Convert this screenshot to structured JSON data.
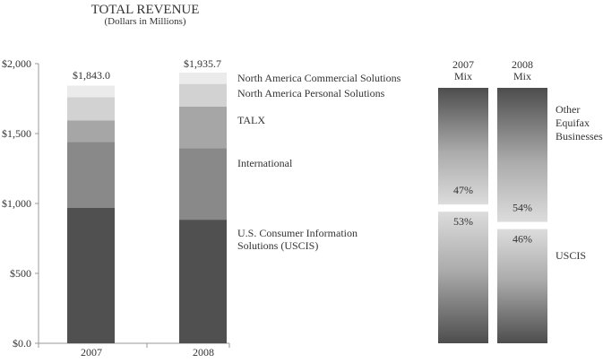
{
  "colors": {
    "text": "#333333",
    "axis": "#999999",
    "segments": [
      "#505050",
      "#898989",
      "#a6a6a6",
      "#d2d2d2",
      "#ebebeb"
    ]
  },
  "chart_data": [
    {
      "type": "bar",
      "stacked": true,
      "title": "TOTAL REVENUE",
      "subtitle": "(Dollars in Millions)",
      "categories": [
        "2007",
        "2008"
      ],
      "ylim": [
        0,
        2000
      ],
      "yticks": [
        "$0.0",
        "$500",
        "$1,000",
        "$1,500",
        "$2,000"
      ],
      "ytick_values": [
        0,
        500,
        1000,
        1500,
        2000
      ],
      "grid": false,
      "legend": "right, labels beside the 2008 bar",
      "totals": [
        "$1,843.0",
        "$1,935.7"
      ],
      "series": [
        {
          "name": "U.S. Consumer Information Solutions (USCIS)",
          "values": [
            968,
            884
          ]
        },
        {
          "name": "International",
          "values": [
            473,
            510
          ]
        },
        {
          "name": "TALX",
          "values": [
            152,
            299
          ]
        },
        {
          "name": "North America Personal Solutions",
          "values": [
            167,
            162
          ]
        },
        {
          "name": "North America Commercial Solutions",
          "values": [
            83,
            81
          ]
        }
      ]
    },
    {
      "type": "bar",
      "stacked": true,
      "title": "",
      "columns": [
        {
          "label_line1": "2007",
          "label_line2": "Mix"
        },
        {
          "label_line1": "2008",
          "label_line2": "Mix"
        }
      ],
      "categories": [
        "2007 Mix",
        "2008 Mix"
      ],
      "ylim": [
        0,
        100
      ],
      "legend": "right",
      "series": [
        {
          "name": "USCIS",
          "values": [
            53,
            46
          ],
          "labels": [
            "53%",
            "46%"
          ]
        },
        {
          "name": "Other Equifax Businesses",
          "name_lines": [
            "Other",
            "Equifax",
            "Businesses"
          ],
          "values": [
            47,
            54
          ],
          "labels": [
            "47%",
            "54%"
          ]
        }
      ]
    }
  ]
}
